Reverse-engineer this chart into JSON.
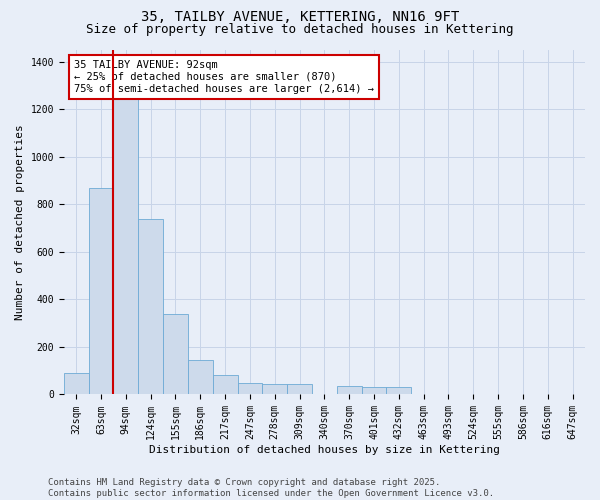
{
  "title_line1": "35, TAILBY AVENUE, KETTERING, NN16 9FT",
  "title_line2": "Size of property relative to detached houses in Kettering",
  "xlabel": "Distribution of detached houses by size in Kettering",
  "ylabel": "Number of detached properties",
  "categories": [
    "32sqm",
    "63sqm",
    "94sqm",
    "124sqm",
    "155sqm",
    "186sqm",
    "217sqm",
    "247sqm",
    "278sqm",
    "309sqm",
    "340sqm",
    "370sqm",
    "401sqm",
    "432sqm",
    "463sqm",
    "493sqm",
    "524sqm",
    "555sqm",
    "586sqm",
    "616sqm",
    "647sqm"
  ],
  "values": [
    90,
    870,
    1270,
    740,
    340,
    145,
    80,
    50,
    45,
    45,
    0,
    35,
    30,
    30,
    0,
    0,
    0,
    0,
    0,
    0,
    0
  ],
  "bar_color": "#cddaeb",
  "bar_edge_color": "#6daad5",
  "vline_color": "#cc0000",
  "annotation_text": "35 TAILBY AVENUE: 92sqm\n← 25% of detached houses are smaller (870)\n75% of semi-detached houses are larger (2,614) →",
  "annotation_box_color": "#ffffff",
  "annotation_box_edge": "#cc0000",
  "ylim": [
    0,
    1450
  ],
  "yticks": [
    0,
    200,
    400,
    600,
    800,
    1000,
    1200,
    1400
  ],
  "grid_color": "#c8d4e8",
  "background_color": "#e8eef8",
  "footer_text": "Contains HM Land Registry data © Crown copyright and database right 2025.\nContains public sector information licensed under the Open Government Licence v3.0.",
  "title_fontsize": 10,
  "subtitle_fontsize": 9,
  "axis_label_fontsize": 8,
  "tick_fontsize": 7,
  "annotation_fontsize": 7.5,
  "footer_fontsize": 6.5
}
